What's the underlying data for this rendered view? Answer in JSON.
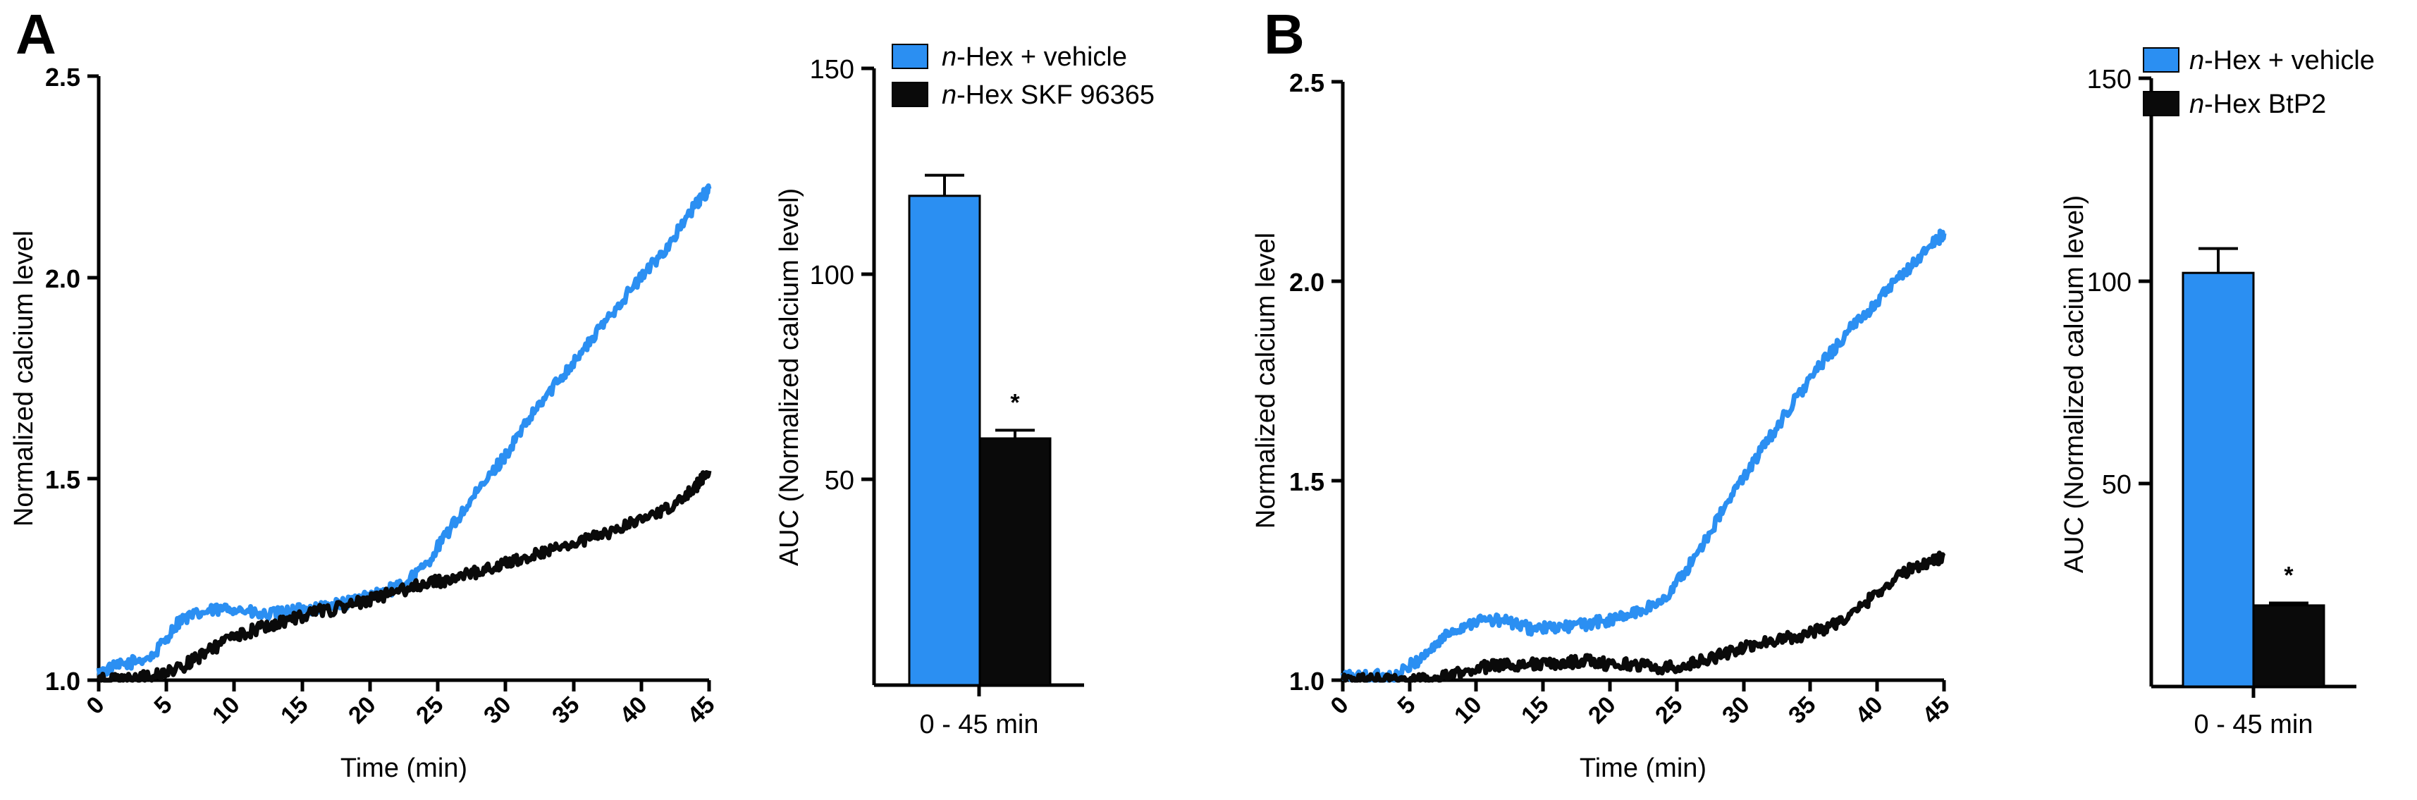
{
  "colors": {
    "vehicle": "#2b8ff2",
    "treatment": "#0a0a0a",
    "axis": "#000000"
  },
  "panels": [
    {
      "letter": "A",
      "line": {
        "ylabel": "Normalized calcium level",
        "xlabel": "Time (min)",
        "yticks": [
          "1.0",
          "1.5",
          "2.0",
          "2.5"
        ],
        "xticks": [
          "0",
          "5",
          "10",
          "15",
          "20",
          "25",
          "30",
          "35",
          "40",
          "45"
        ]
      },
      "bar": {
        "ylabel": "AUC  (Normalized calcium level)",
        "xlabel": "0 - 45 min",
        "yticks": [
          "50",
          "100",
          "150"
        ],
        "legend": [
          {
            "italic": "n",
            "rest": "-Hex + vehicle"
          },
          {
            "italic": "n",
            "rest": "-Hex SKF 96365"
          }
        ],
        "sig": "*"
      }
    },
    {
      "letter": "B",
      "line": {
        "ylabel": "Normalized calcium level",
        "xlabel": "Time (min)",
        "yticks": [
          "1.0",
          "1.5",
          "2.0",
          "2.5"
        ],
        "xticks": [
          "0",
          "5",
          "10",
          "15",
          "20",
          "25",
          "30",
          "35",
          "40",
          "45"
        ]
      },
      "bar": {
        "ylabel": "AUC  (Normalized calcium level)",
        "xlabel": "0 - 45 min",
        "yticks": [
          "50",
          "100",
          "150"
        ],
        "legend": [
          {
            "italic": "n",
            "rest": "-Hex + vehicle"
          },
          {
            "italic": "n",
            "rest": "-Hex BtP2"
          }
        ],
        "sig": "*"
      }
    }
  ],
  "chart_data": [
    {
      "type": "line",
      "panel": "A",
      "xlabel": "Time (min)",
      "ylabel": "Normalized calcium level",
      "xlim": [
        0,
        45
      ],
      "ylim": [
        1.0,
        2.5
      ],
      "series": [
        {
          "name": "n-Hex + vehicle",
          "color": "#2b8ff2",
          "x": [
            0,
            2,
            4,
            6,
            8,
            10,
            12,
            14,
            16,
            18,
            20,
            22,
            24,
            26,
            28,
            30,
            32,
            34,
            36,
            38,
            40,
            42,
            44,
            45
          ],
          "y": [
            1.02,
            1.04,
            1.06,
            1.15,
            1.17,
            1.18,
            1.16,
            1.17,
            1.18,
            1.19,
            1.21,
            1.23,
            1.28,
            1.38,
            1.47,
            1.56,
            1.66,
            1.75,
            1.83,
            1.92,
            2.0,
            2.08,
            2.18,
            2.22
          ]
        },
        {
          "name": "n-Hex SKF 96365",
          "color": "#0a0a0a",
          "x": [
            0,
            2,
            4,
            6,
            8,
            10,
            12,
            14,
            16,
            18,
            20,
            22,
            24,
            26,
            28,
            30,
            32,
            34,
            36,
            38,
            40,
            42,
            44,
            45
          ],
          "y": [
            1.0,
            1.0,
            1.01,
            1.03,
            1.07,
            1.11,
            1.13,
            1.15,
            1.17,
            1.18,
            1.2,
            1.22,
            1.24,
            1.25,
            1.27,
            1.29,
            1.31,
            1.33,
            1.35,
            1.37,
            1.4,
            1.43,
            1.48,
            1.52
          ]
        }
      ]
    },
    {
      "type": "bar",
      "panel": "A",
      "categories": [
        "0 - 45 min"
      ],
      "ylabel": "AUC  (Normalized calcium level)",
      "ylim": [
        0,
        150
      ],
      "series": [
        {
          "name": "n-Hex + vehicle",
          "value": 119,
          "error": 5,
          "color": "#2b8ff2"
        },
        {
          "name": "n-Hex SKF 96365",
          "value": 60,
          "error": 2,
          "color": "#0a0a0a",
          "significance": "*"
        }
      ]
    },
    {
      "type": "line",
      "panel": "B",
      "xlabel": "Time (min)",
      "ylabel": "Normalized calcium level",
      "xlim": [
        0,
        45
      ],
      "ylim": [
        1.0,
        2.5
      ],
      "series": [
        {
          "name": "n-Hex + vehicle",
          "color": "#2b8ff2",
          "x": [
            0,
            2,
            4,
            6,
            8,
            10,
            12,
            14,
            16,
            18,
            20,
            22,
            24,
            26,
            28,
            30,
            32,
            34,
            36,
            38,
            40,
            42,
            44,
            45
          ],
          "y": [
            1.01,
            1.01,
            1.01,
            1.06,
            1.12,
            1.15,
            1.15,
            1.13,
            1.13,
            1.14,
            1.15,
            1.17,
            1.2,
            1.29,
            1.4,
            1.51,
            1.61,
            1.71,
            1.8,
            1.88,
            1.95,
            2.02,
            2.09,
            2.12
          ]
        },
        {
          "name": "n-Hex BtP2",
          "color": "#0a0a0a",
          "x": [
            0,
            2,
            4,
            6,
            8,
            10,
            12,
            14,
            16,
            18,
            20,
            22,
            24,
            26,
            28,
            30,
            32,
            34,
            36,
            38,
            40,
            42,
            44,
            45
          ],
          "y": [
            1.0,
            1.0,
            1.0,
            1.0,
            1.01,
            1.03,
            1.04,
            1.04,
            1.04,
            1.05,
            1.04,
            1.04,
            1.03,
            1.04,
            1.06,
            1.08,
            1.1,
            1.11,
            1.13,
            1.16,
            1.22,
            1.27,
            1.3,
            1.31
          ]
        }
      ]
    },
    {
      "type": "bar",
      "panel": "B",
      "categories": [
        "0 - 45 min"
      ],
      "ylabel": "AUC  (Normalized calcium level)",
      "ylim": [
        0,
        150
      ],
      "series": [
        {
          "name": "n-Hex + vehicle",
          "value": 102,
          "error": 6,
          "color": "#2b8ff2"
        },
        {
          "name": "n-Hex BtP2",
          "value": 20,
          "error": 0.6,
          "color": "#0a0a0a",
          "significance": "*"
        }
      ]
    }
  ]
}
